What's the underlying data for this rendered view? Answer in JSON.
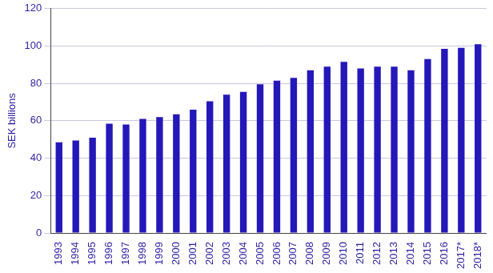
{
  "chart_data": {
    "type": "bar",
    "y_label": "SEK billions",
    "categories": [
      "1993",
      "1994",
      "1995",
      "1996",
      "1997",
      "1998",
      "1999",
      "2000",
      "2001",
      "2002",
      "2003",
      "2004",
      "2005",
      "2006",
      "2007",
      "2008",
      "2009",
      "2010",
      "2011",
      "2012",
      "2013",
      "2014",
      "2015",
      "2016",
      "2017*",
      "2018*"
    ],
    "values": [
      48.5,
      49.5,
      51,
      58.5,
      58,
      61,
      62,
      63.5,
      66,
      70.5,
      74,
      75.5,
      79.5,
      81.5,
      83,
      87,
      89,
      91.5,
      88,
      89,
      89,
      87,
      93,
      98.5,
      99,
      101
    ],
    "color": "#2418b8",
    "ylim": [
      0,
      120
    ],
    "yticks": [
      0,
      20,
      40,
      60,
      80,
      100,
      120
    ],
    "grid": true
  }
}
